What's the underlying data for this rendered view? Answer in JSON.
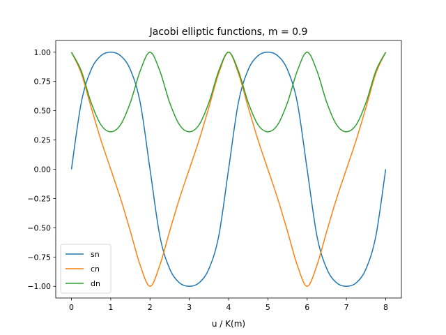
{
  "chart_data": {
    "type": "line",
    "title": "Jacobi elliptic functions, m = 0.9",
    "xlabel": "u / K(m)",
    "ylabel": "",
    "xlim": [
      -0.4,
      8.4
    ],
    "ylim": [
      -1.1,
      1.1
    ],
    "grid": false,
    "legend_position": "lower-left",
    "xticks": [
      0,
      1,
      2,
      3,
      4,
      5,
      6,
      7,
      8
    ],
    "xtick_labels": [
      "0",
      "1",
      "2",
      "3",
      "4",
      "5",
      "6",
      "7",
      "8"
    ],
    "yticks": [
      1.0,
      0.75,
      0.5,
      0.25,
      0.0,
      -0.25,
      -0.5,
      -0.75,
      -1.0
    ],
    "ytick_labels": [
      "1.00",
      "0.75",
      "0.50",
      "0.25",
      "0.00",
      "−0.25",
      "−0.50",
      "−0.75",
      "−1.00"
    ],
    "x": [
      0,
      0.25,
      0.5,
      0.75,
      1,
      1.25,
      1.5,
      1.75,
      2,
      2.25,
      2.5,
      2.75,
      3,
      3.25,
      3.5,
      3.75,
      4,
      4.25,
      4.5,
      4.75,
      5,
      5.25,
      5.5,
      5.75,
      6,
      6.25,
      6.5,
      6.75,
      7,
      7.25,
      7.5,
      7.75,
      8
    ],
    "series": [
      {
        "name": "sn",
        "color": "#1f77b4",
        "values": [
          0.0,
          0.57,
          0.85,
          0.97,
          1.0,
          0.97,
          0.85,
          0.57,
          0.0,
          -0.57,
          -0.85,
          -0.97,
          -1.0,
          -0.97,
          -0.85,
          -0.57,
          0.0,
          0.57,
          0.85,
          0.97,
          1.0,
          0.97,
          0.85,
          0.57,
          0.0,
          -0.57,
          -0.85,
          -0.97,
          -1.0,
          -0.97,
          -0.85,
          -0.57,
          0.0
        ]
      },
      {
        "name": "cn",
        "color": "#ff7f0e",
        "values": [
          1.0,
          0.82,
          0.53,
          0.25,
          0.0,
          -0.25,
          -0.53,
          -0.82,
          -1.0,
          -0.82,
          -0.53,
          -0.25,
          0.0,
          0.25,
          0.53,
          0.82,
          1.0,
          0.82,
          0.53,
          0.25,
          0.0,
          -0.25,
          -0.53,
          -0.82,
          -1.0,
          -0.82,
          -0.53,
          -0.25,
          0.0,
          0.25,
          0.53,
          0.82,
          1.0
        ]
      },
      {
        "name": "dn",
        "color": "#2ca02c",
        "values": [
          1.0,
          0.84,
          0.57,
          0.38,
          0.32,
          0.38,
          0.57,
          0.84,
          1.0,
          0.84,
          0.57,
          0.38,
          0.32,
          0.38,
          0.57,
          0.84,
          1.0,
          0.84,
          0.57,
          0.38,
          0.32,
          0.38,
          0.57,
          0.84,
          1.0,
          0.84,
          0.57,
          0.38,
          0.32,
          0.38,
          0.57,
          0.84,
          1.0
        ]
      }
    ]
  }
}
